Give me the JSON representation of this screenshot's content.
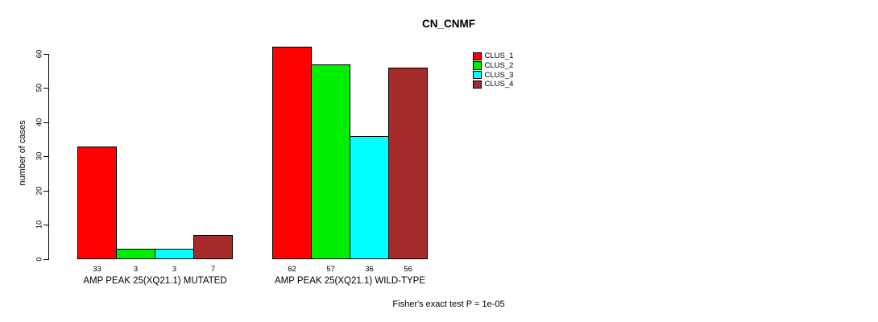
{
  "title": "CN_CNMF",
  "footer_note": "Fisher's exact test P = 1e-05",
  "chart_data": {
    "type": "bar",
    "title": "CN_CNMF",
    "xlabel": "",
    "ylabel": "number of cases",
    "ylim": [
      0,
      60
    ],
    "yticks": [
      0,
      10,
      20,
      30,
      40,
      50,
      60
    ],
    "grid": false,
    "legend_position": "right",
    "categories": [
      "AMP PEAK 25(XQ21.1) MUTATED",
      "AMP PEAK 25(XQ21.1) WILD-TYPE"
    ],
    "series": [
      {
        "name": "CLUS_1",
        "color": "#FF0000",
        "values": [
          33,
          62
        ]
      },
      {
        "name": "CLUS_2",
        "color": "#00EE00",
        "values": [
          3,
          57
        ]
      },
      {
        "name": "CLUS_3",
        "color": "#00FFFF",
        "values": [
          3,
          36
        ]
      },
      {
        "name": "CLUS_4",
        "color": "#A52A2A",
        "values": [
          7,
          56
        ]
      }
    ],
    "bar_value_labels": [
      [
        33,
        3,
        3,
        7
      ],
      [
        62,
        57,
        36,
        56
      ]
    ],
    "annotation": "Fisher's exact test P = 1e-05",
    "bar_border_color": "#000000"
  }
}
